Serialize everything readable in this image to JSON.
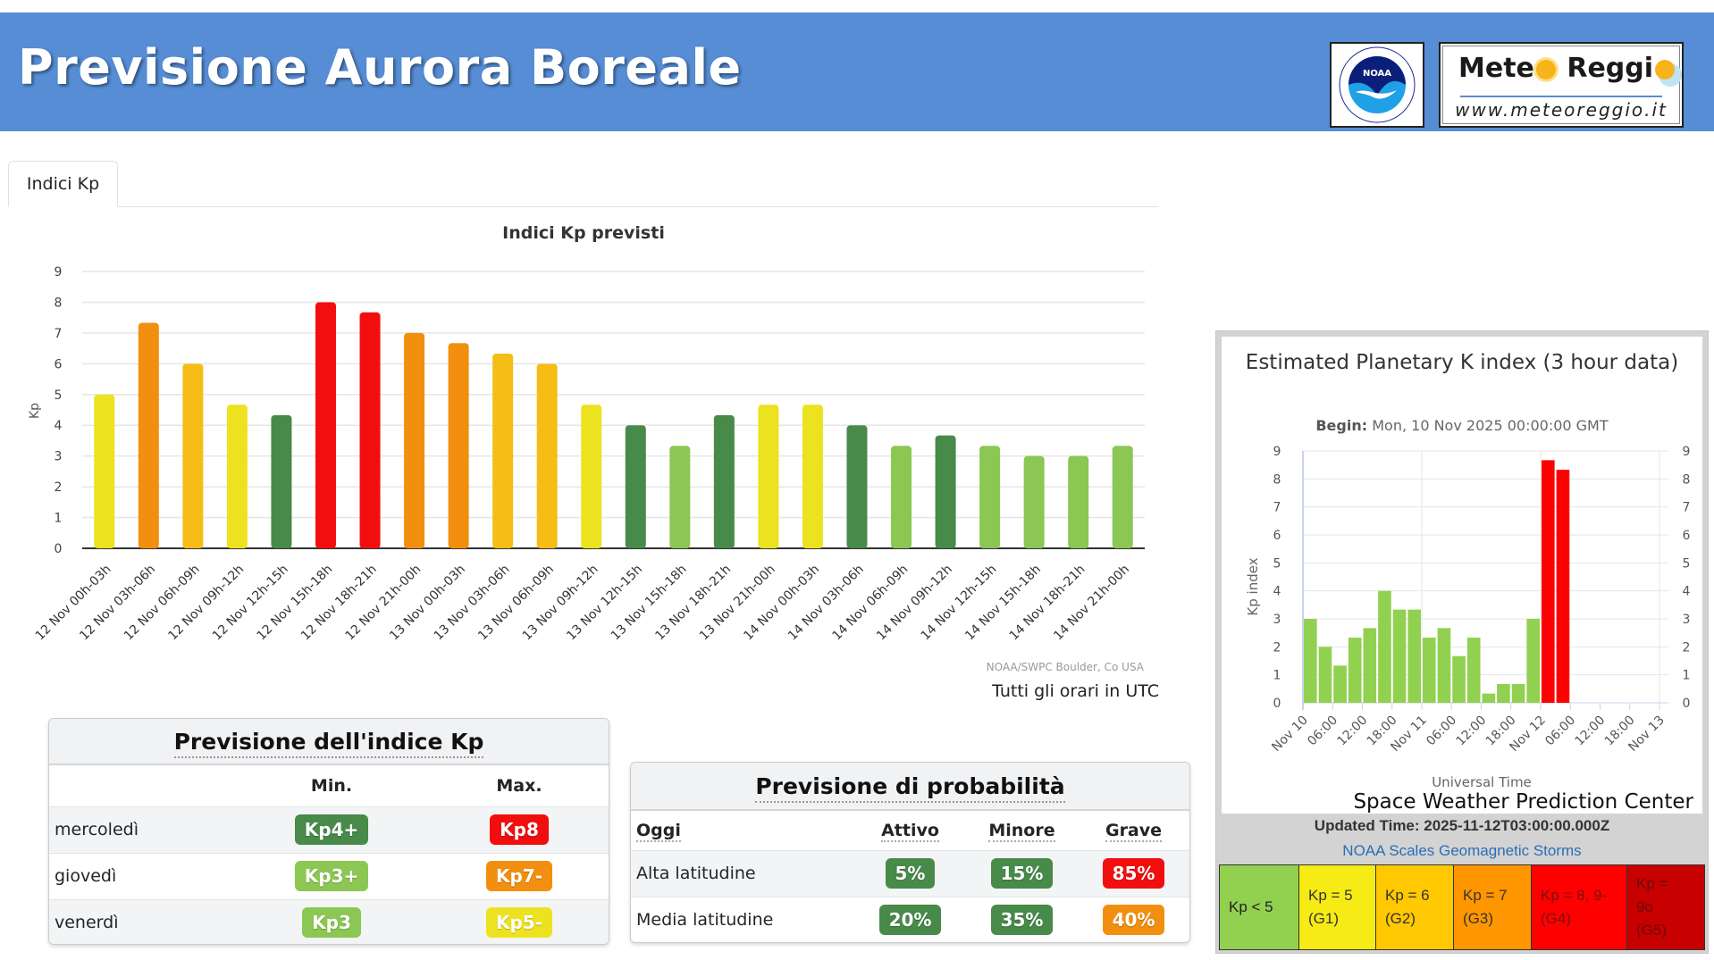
{
  "header": {
    "title": "Previsione Aurora Boreale",
    "noaa_logo_text": "NOAA",
    "partner_name_part1": "Mete",
    "partner_name_part2": "Reggi",
    "partner_url": "www.meteoreggio.it",
    "bg_color": "#568dd5"
  },
  "tabs": [
    {
      "label": "Indici Kp",
      "active": true
    }
  ],
  "chart_data": [
    {
      "type": "bar",
      "title": "Indici Kp previsti",
      "xlabel": "",
      "ylabel": "Kp",
      "ylim": [
        0,
        9
      ],
      "yticks": [
        0,
        1,
        2,
        3,
        4,
        5,
        6,
        7,
        8,
        9
      ],
      "grid": true,
      "categories": [
        "12 Nov 00h-03h",
        "12 Nov 03h-06h",
        "12 Nov 06h-09h",
        "12 Nov 09h-12h",
        "12 Nov 12h-15h",
        "12 Nov 15h-18h",
        "12 Nov 18h-21h",
        "12 Nov 21h-00h",
        "13 Nov 00h-03h",
        "13 Nov 03h-06h",
        "13 Nov 06h-09h",
        "13 Nov 09h-12h",
        "13 Nov 12h-15h",
        "13 Nov 15h-18h",
        "13 Nov 18h-21h",
        "13 Nov 21h-00h",
        "14 Nov 00h-03h",
        "14 Nov 03h-06h",
        "14 Nov 06h-09h",
        "14 Nov 09h-12h",
        "14 Nov 12h-15h",
        "14 Nov 15h-18h",
        "14 Nov 18h-21h",
        "14 Nov 21h-00h"
      ],
      "values": [
        5.0,
        7.33,
        6.0,
        4.67,
        4.33,
        8.0,
        7.67,
        7.0,
        6.67,
        6.33,
        6.0,
        4.67,
        4.0,
        3.33,
        4.33,
        4.67,
        4.67,
        4.0,
        3.33,
        3.67,
        3.33,
        3.0,
        3.0,
        3.33
      ],
      "colors": [
        "#ede21f",
        "#f28f0e",
        "#f6bd16",
        "#ede21f",
        "#478a49",
        "#f20e0e",
        "#f20e0e",
        "#f28f0e",
        "#f28f0e",
        "#f6bd16",
        "#f6bd16",
        "#ede21f",
        "#478a49",
        "#8bc752",
        "#478a49",
        "#ede21f",
        "#ede21f",
        "#478a49",
        "#8bc752",
        "#478a49",
        "#8bc752",
        "#8bc752",
        "#8bc752",
        "#8bc752"
      ],
      "source": "NOAA/SWPC Boulder, Co USA",
      "note": "Tutti gli orari in UTC"
    },
    {
      "type": "bar",
      "title": "Estimated Planetary K index (3 hour data)",
      "subtitle_label": "Begin:",
      "subtitle_value": "Mon, 10 Nov 2025 00:00:00 GMT",
      "xlabel": "Universal Time",
      "ylabel": "Kp index",
      "ylim": [
        0,
        9
      ],
      "yticks": [
        0,
        1,
        2,
        3,
        4,
        5,
        6,
        7,
        8,
        9
      ],
      "grid": true,
      "xticks": [
        "Nov 10",
        "06:00",
        "12:00",
        "18:00",
        "Nov 11",
        "06:00",
        "12:00",
        "18:00",
        "Nov 12",
        "06:00",
        "12:00",
        "18:00",
        "Nov 13"
      ],
      "x_slots": 24,
      "values": [
        3.0,
        2.0,
        1.33,
        2.33,
        2.67,
        4.0,
        3.33,
        3.33,
        2.33,
        2.67,
        1.67,
        2.33,
        0.33,
        0.67,
        0.67,
        3.0,
        8.67,
        8.33
      ],
      "colors": [
        "#92d050",
        "#92d050",
        "#92d050",
        "#92d050",
        "#92d050",
        "#92d050",
        "#92d050",
        "#92d050",
        "#92d050",
        "#92d050",
        "#92d050",
        "#92d050",
        "#92d050",
        "#92d050",
        "#92d050",
        "#92d050",
        "#ff0000",
        "#ff0000"
      ],
      "credit": "Space Weather Prediction Center"
    }
  ],
  "kp_forecast": {
    "title": "Previsione dell'indice Kp",
    "columns": [
      "",
      "Min.",
      "Max."
    ],
    "rows": [
      {
        "day": "mercoledì",
        "min": "Kp4+",
        "min_color": "#478a49",
        "max": "Kp8",
        "max_color": "#f20e0e"
      },
      {
        "day": "giovedì",
        "min": "Kp3+",
        "min_color": "#8bc752",
        "max": "Kp7-",
        "max_color": "#f28f0e"
      },
      {
        "day": "venerdì",
        "min": "Kp3",
        "min_color": "#8bc752",
        "max": "Kp5-",
        "max_color": "#ede21f"
      }
    ]
  },
  "probability_forecast": {
    "title": "Previsione di probabilità",
    "columns": [
      "Oggi",
      "Attivo",
      "Minore",
      "Grave"
    ],
    "rows": [
      {
        "label": "Alta latitudine",
        "values": [
          "5%",
          "15%",
          "85%"
        ],
        "colors": [
          "#478a49",
          "#478a49",
          "#f20e0e"
        ]
      },
      {
        "label": "Media latitudine",
        "values": [
          "20%",
          "35%",
          "40%"
        ],
        "colors": [
          "#478a49",
          "#478a49",
          "#f28f0e"
        ]
      }
    ]
  },
  "swpc_panel": {
    "updated": "Updated Time: 2025-11-12T03:00:00.000Z",
    "scales_link": "NOAA Scales Geomagnetic Storms",
    "scales": [
      {
        "line1": "Kp < 5",
        "line2": "",
        "line3": "",
        "bg": "#92d050",
        "fg": "#222222"
      },
      {
        "line1": "Kp = 5",
        "line2": "(G1)",
        "line3": "",
        "bg": "#f6eb14",
        "fg": "#333333"
      },
      {
        "line1": "Kp = 6",
        "line2": "(G2)",
        "line3": "",
        "bg": "#ffc800",
        "fg": "#333333"
      },
      {
        "line1": "Kp = 7",
        "line2": "(G3)",
        "line3": "",
        "bg": "#ff9600",
        "fg": "#333333"
      },
      {
        "line1": "Kp = 8, 9-",
        "line2": "(G4)",
        "line3": "",
        "bg": "#ff0000",
        "fg": "#7a1010"
      },
      {
        "line1": "Kp =",
        "line2": "9o",
        "line3": "(G5)",
        "bg": "#c80000",
        "fg": "#6a0a0a"
      }
    ]
  }
}
